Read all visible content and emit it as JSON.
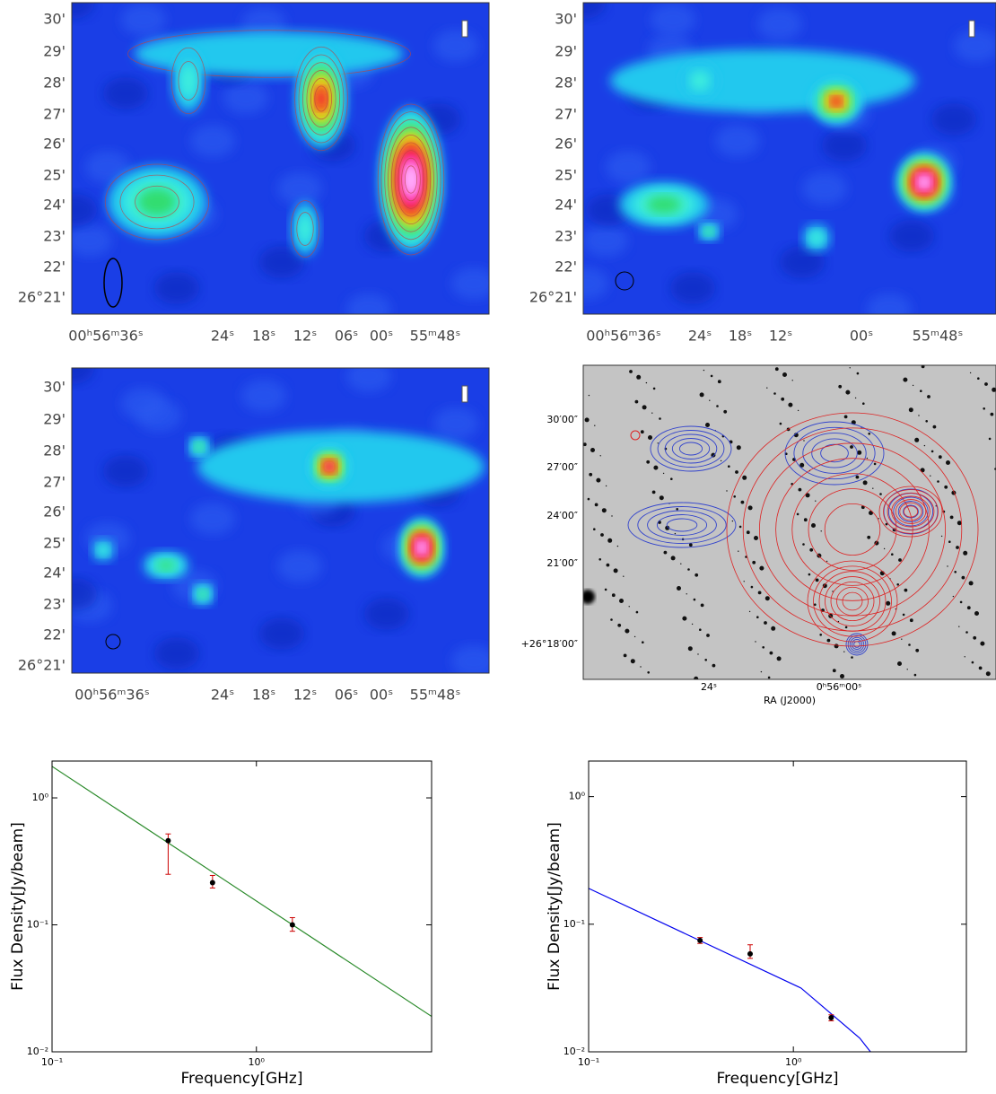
{
  "panels": [
    {
      "yticks": [
        "30'",
        "29'",
        "28'",
        "27'",
        "26'",
        "25'",
        "24'",
        "23'",
        "22'",
        "26°21'"
      ],
      "xticks": [
        "00ʰ56ᵐ36ˢ",
        "24ˢ",
        "18ˢ",
        "12ˢ",
        "06ˢ",
        "00ˢ",
        "55ᵐ48ˢ"
      ]
    },
    {
      "yticks": [
        "30'",
        "29'",
        "28'",
        "27'",
        "26'",
        "25'",
        "24'",
        "23'",
        "22'",
        "26°21'"
      ],
      "xticks": [
        "00ʰ56ᵐ36ˢ",
        "24ˢ",
        "18ˢ",
        "12ˢ",
        "00ˢ",
        "55ᵐ48ˢ"
      ]
    },
    {
      "yticks": [
        "30'",
        "29'",
        "28'",
        "27'",
        "26'",
        "25'",
        "24'",
        "23'",
        "22'",
        "26°21'"
      ],
      "xticks": [
        "00ʰ56ᵐ36ˢ",
        "24ˢ",
        "18ˢ",
        "12ˢ",
        "06ˢ",
        "00ˢ",
        "55ᵐ48ˢ"
      ]
    },
    {
      "yticks": [
        "30′00″",
        "27′00″",
        "24′00″",
        "21′00″",
        "+26°18′00″"
      ],
      "xticks": [
        "24ˢ",
        "0ʰ56ᵐ00ˢ"
      ],
      "xlabel": "RA (J2000)"
    }
  ],
  "chart_data": [
    {
      "type": "scatter",
      "log_x": true,
      "log_y": true,
      "xlabel": "Frequency[GHz]",
      "ylabel": "Flux Density[Jy/beam]",
      "xlim": [
        0.1,
        7.2
      ],
      "ylim": [
        0.01,
        1.95
      ],
      "xticks": [
        {
          "value": 0.1,
          "label": "10⁻¹"
        },
        {
          "value": 1,
          "label": "10⁰"
        }
      ],
      "yticks": [
        {
          "value": 0.01,
          "label": "10⁻²"
        },
        {
          "value": 0.1,
          "label": "10⁻¹"
        },
        {
          "value": 1,
          "label": "10⁰"
        }
      ],
      "points": {
        "x": [
          0.37,
          0.61,
          1.5
        ],
        "values": [
          0.46,
          0.215,
          0.1
        ],
        "err_minus": [
          0.21,
          0.02,
          0.011
        ],
        "err_plus": [
          0.06,
          0.03,
          0.014
        ],
        "color": "#000000",
        "error_color": "#cc0000"
      },
      "fit": {
        "x": [
          0.1,
          7.2
        ],
        "values": [
          1.77,
          0.019
        ],
        "color": "#2a8a2a"
      }
    },
    {
      "type": "scatter",
      "log_x": true,
      "log_y": true,
      "xlabel": "Frequency[GHz]",
      "ylabel": "Flux Density[Jy/beam]",
      "xlim": [
        0.1,
        7.0
      ],
      "ylim": [
        0.01,
        1.9
      ],
      "xticks": [
        {
          "value": 0.1,
          "label": "10⁻¹"
        },
        {
          "value": 1,
          "label": "10⁰"
        }
      ],
      "yticks": [
        {
          "value": 0.01,
          "label": "10⁻²"
        },
        {
          "value": 0.1,
          "label": "10⁻¹"
        },
        {
          "value": 1,
          "label": "10⁰"
        }
      ],
      "points": {
        "x": [
          0.35,
          0.615,
          1.53
        ],
        "values": [
          0.0747,
          0.0586,
          0.0185
        ],
        "err_minus": [
          0.004,
          0.0046,
          0.001
        ],
        "err_plus": [
          0.004,
          0.0104,
          0.001
        ],
        "color": "#000000",
        "error_color": "#cc0000"
      },
      "fit": {
        "x": [
          0.1,
          1.09,
          2.11,
          2.38
        ],
        "values": [
          0.191,
          0.0316,
          0.0128,
          0.01
        ],
        "color": "#0000ee"
      }
    }
  ]
}
